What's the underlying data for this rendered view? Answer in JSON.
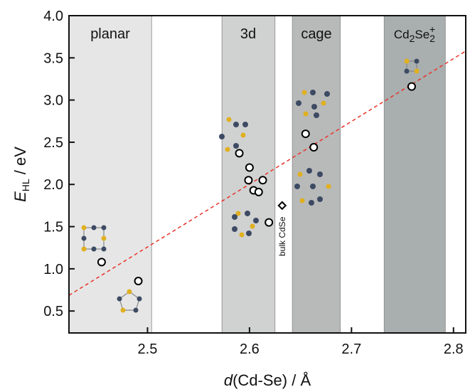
{
  "chart_data": {
    "type": "scatter",
    "xlabel": [
      "d",
      "(Cd-Se) / Å"
    ],
    "ylabel": [
      "E",
      "HL",
      " / eV"
    ],
    "xlim": [
      2.423,
      2.812
    ],
    "ylim": [
      0.24,
      4.0
    ],
    "xticks": [
      2.5,
      2.6,
      2.7,
      2.8
    ],
    "yticks": [
      0.5,
      {
        "value": 1,
        "label": "1.0"
      },
      1.5,
      {
        "value": 2,
        "label": "2.0"
      },
      2.5,
      {
        "value": 3,
        "label": "3.0"
      },
      3.5,
      {
        "value": 4,
        "label": "4.0"
      }
    ],
    "bands": [
      {
        "label": [
          "planar"
        ],
        "range": [
          2.423,
          2.504
        ],
        "color": "#e6e6e6"
      },
      {
        "label": [
          "3d"
        ],
        "range": [
          2.573,
          2.625
        ],
        "color": "#d0d1d1"
      },
      {
        "label": [
          "cage"
        ],
        "range": [
          2.642,
          2.689
        ],
        "color": "#b8b9b9"
      },
      {
        "label": [
          "Cd",
          "2",
          "Se",
          "2",
          "+"
        ],
        "range": [
          2.732,
          2.792
        ],
        "color": "#a9aeae"
      }
    ],
    "series": [
      {
        "marker": "circle",
        "color": "#000000",
        "x": [
          2.455,
          2.491,
          2.59,
          2.6,
          2.599,
          2.604,
          2.609,
          2.613,
          2.619,
          2.655,
          2.663,
          2.759
        ],
        "values": [
          1.08,
          0.855,
          2.37,
          2.2,
          2.05,
          1.93,
          1.91,
          2.05,
          1.55,
          2.6,
          2.44,
          3.16
        ]
      },
      {
        "name": "bulk CdSe",
        "marker": "diamond",
        "color": "#000000",
        "x": [
          2.632
        ],
        "values": [
          1.75
        ]
      }
    ],
    "fit": {
      "x": [
        2.423,
        2.812
      ],
      "y": [
        0.686,
        3.58
      ],
      "color": "#e8332a"
    }
  }
}
